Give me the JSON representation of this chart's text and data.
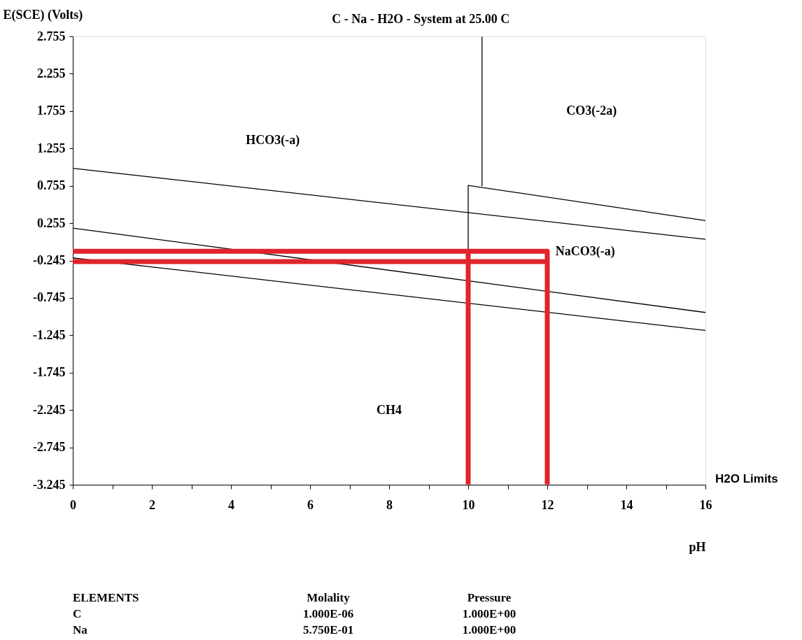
{
  "chart_data": {
    "type": "line",
    "title": "C - Na - H2O - System at 25.00 C",
    "xlabel": "pH",
    "ylabel": "E(SCE) (Volts)",
    "xlim": [
      0,
      16
    ],
    "ylim": [
      -3.245,
      2.755
    ],
    "xticks": [
      0,
      {
        "value": 1,
        "label": null
      },
      2,
      {
        "value": 3,
        "label": null
      },
      4,
      {
        "value": 5,
        "label": null
      },
      6,
      {
        "value": 7,
        "label": null
      },
      8,
      {
        "value": 9,
        "label": null
      },
      10,
      {
        "value": 11,
        "label": null
      },
      12,
      {
        "value": 13,
        "label": null
      },
      14,
      {
        "value": 15,
        "label": null
      },
      16
    ],
    "yticks": [
      2.755,
      2.255,
      1.755,
      1.255,
      0.755,
      0.255,
      -0.245,
      -0.745,
      -1.245,
      -1.745,
      -2.245,
      -2.745,
      -3.245
    ],
    "series": [
      {
        "color": "#000000",
        "x": [
          0,
          16
        ],
        "values": [
          0.99,
          0.04
        ]
      },
      {
        "color": "#000000",
        "x": [
          0,
          16
        ],
        "values": [
          0.19,
          -0.94
        ]
      },
      {
        "color": "#000000",
        "x": [
          0,
          16
        ],
        "values": [
          -0.21,
          -1.18
        ]
      },
      {
        "color": "#000000",
        "x": [
          10,
          10,
          16
        ],
        "values": [
          -0.52,
          0.76,
          0.29
        ]
      },
      {
        "color": "#000000",
        "x": [
          10.35,
          10.35
        ],
        "values": [
          2.75,
          0.75
        ]
      },
      {
        "color": "#e0242b",
        "x": [
          0,
          12,
          12
        ],
        "values": [
          -0.12,
          -0.12,
          -3.24
        ]
      },
      {
        "color": "#e0242b",
        "x": [
          0,
          12
        ],
        "values": [
          -0.26,
          -0.26
        ]
      },
      {
        "color": "#e0242b",
        "x": [
          10,
          10
        ],
        "values": [
          -0.12,
          -3.24
        ]
      }
    ],
    "annotations": [
      "HCO3(-a)",
      "CO3(-2a)",
      "NaCO3(-a)",
      "CH4",
      "H2O Limits",
      "ELEMENTS",
      "Molality",
      "Pressure",
      "C",
      "1.000E-06",
      "1.000E+00",
      "Na",
      "5.750E-01",
      "1.000E+00"
    ],
    "grid": false,
    "legend": false,
    "marker": "none",
    "line_style": "solid"
  }
}
